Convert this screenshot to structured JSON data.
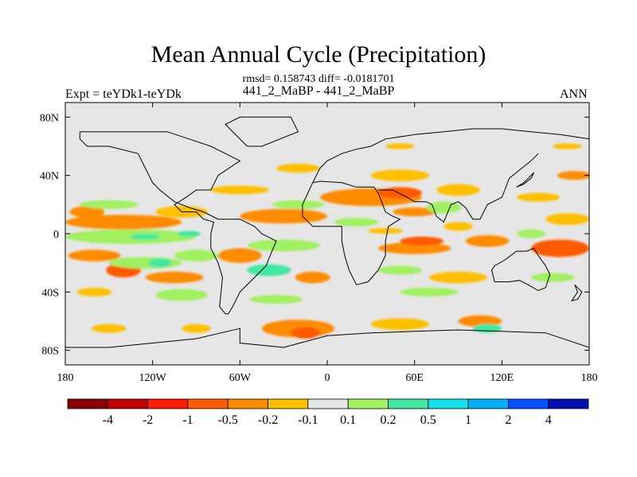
{
  "title": "Mean Annual Cycle (Precipitation)",
  "stats_line": "rmsd= 0.158743 diff= -0.0181701",
  "left_label": "Expt = teYDk1-teYDk",
  "center_label": "441_2_MaBP - 441_2_MaBP",
  "right_label": "ANN",
  "chart_data": {
    "type": "heatmap",
    "title": "Mean Annual Cycle (Precipitation)",
    "projection": "cylindrical-equidistant",
    "xlim": [
      -180,
      180
    ],
    "ylim": [
      -90,
      90
    ],
    "x_ticks": [
      {
        "value": -180,
        "label": "180"
      },
      {
        "value": -120,
        "label": "120W"
      },
      {
        "value": -60,
        "label": "60W"
      },
      {
        "value": 0,
        "label": "0"
      },
      {
        "value": 60,
        "label": "60E"
      },
      {
        "value": 120,
        "label": "120E"
      },
      {
        "value": 180,
        "label": "180"
      }
    ],
    "y_ticks": [
      {
        "value": 80,
        "label": "80N"
      },
      {
        "value": 40,
        "label": "40N"
      },
      {
        "value": 0,
        "label": "0"
      },
      {
        "value": -40,
        "label": "40S"
      },
      {
        "value": -80,
        "label": "80S"
      }
    ],
    "colorbar": {
      "colors": [
        "#8b0000",
        "#c40000",
        "#ff1a00",
        "#ff5a00",
        "#ff8c00",
        "#ffc000",
        "#e6e6e6",
        "#a0f060",
        "#40e8a0",
        "#10e0e8",
        "#00b0ff",
        "#0050ff",
        "#0010b0"
      ],
      "level_labels": [
        "-4",
        "-2",
        "-1",
        "-0.5",
        "-0.2",
        "-0.1",
        "0.1",
        "0.2",
        "0.5",
        "1",
        "2",
        "4"
      ]
    },
    "regions": [
      {
        "lon": -140,
        "lat": 8,
        "rlon": 40,
        "rlat": 5,
        "c": 4
      },
      {
        "lon": -100,
        "lat": 15,
        "rlon": 18,
        "rlat": 4,
        "c": 5
      },
      {
        "lon": -165,
        "lat": 15,
        "rlon": 12,
        "rlat": 4,
        "c": 4
      },
      {
        "lon": -135,
        "lat": -2,
        "rlon": 45,
        "rlat": 5,
        "c": 7
      },
      {
        "lon": -125,
        "lat": -2,
        "rlon": 10,
        "rlat": 2,
        "c": 8
      },
      {
        "lon": -95,
        "lat": 0,
        "rlon": 8,
        "rlat": 2,
        "c": 8
      },
      {
        "lon": -150,
        "lat": 20,
        "rlon": 20,
        "rlat": 3,
        "c": 7
      },
      {
        "lon": -160,
        "lat": -15,
        "rlon": 18,
        "rlat": 4,
        "c": 4
      },
      {
        "lon": -140,
        "lat": -25,
        "rlon": 12,
        "rlat": 5,
        "c": 3
      },
      {
        "lon": -125,
        "lat": -20,
        "rlon": 25,
        "rlat": 4,
        "c": 7
      },
      {
        "lon": -115,
        "lat": -20,
        "rlon": 8,
        "rlat": 3,
        "c": 8
      },
      {
        "lon": -90,
        "lat": -15,
        "rlon": 15,
        "rlat": 4,
        "c": 7
      },
      {
        "lon": -105,
        "lat": -30,
        "rlon": 20,
        "rlat": 4,
        "c": 4
      },
      {
        "lon": -100,
        "lat": -42,
        "rlon": 18,
        "rlat": 4,
        "c": 7
      },
      {
        "lon": -160,
        "lat": -40,
        "rlon": 12,
        "rlat": 3,
        "c": 5
      },
      {
        "lon": -30,
        "lat": 12,
        "rlon": 30,
        "rlat": 5,
        "c": 4
      },
      {
        "lon": -60,
        "lat": 30,
        "rlon": 20,
        "rlat": 3,
        "c": 5
      },
      {
        "lon": -20,
        "lat": 45,
        "rlon": 15,
        "rlat": 3,
        "c": 5
      },
      {
        "lon": -20,
        "lat": 20,
        "rlon": 18,
        "rlat": 3,
        "c": 7
      },
      {
        "lon": -30,
        "lat": -8,
        "rlon": 25,
        "rlat": 4,
        "c": 7
      },
      {
        "lon": -60,
        "lat": -15,
        "rlon": 15,
        "rlat": 5,
        "c": 4
      },
      {
        "lon": -40,
        "lat": -25,
        "rlon": 15,
        "rlat": 4,
        "c": 8
      },
      {
        "lon": -10,
        "lat": -30,
        "rlon": 12,
        "rlat": 4,
        "c": 4
      },
      {
        "lon": -35,
        "lat": -45,
        "rlon": 18,
        "rlat": 3,
        "c": 7
      },
      {
        "lon": -20,
        "lat": -65,
        "rlon": 25,
        "rlat": 6,
        "c": 4
      },
      {
        "lon": -15,
        "lat": -68,
        "rlon": 10,
        "rlat": 4,
        "c": 3
      },
      {
        "lon": -150,
        "lat": -65,
        "rlon": 12,
        "rlat": 3,
        "c": 5
      },
      {
        "lon": -90,
        "lat": -65,
        "rlon": 10,
        "rlat": 3,
        "c": 5
      },
      {
        "lon": 30,
        "lat": 25,
        "rlon": 35,
        "rlat": 6,
        "c": 4
      },
      {
        "lon": 50,
        "lat": 28,
        "rlon": 15,
        "rlat": 4,
        "c": 3
      },
      {
        "lon": 50,
        "lat": 40,
        "rlon": 20,
        "rlat": 4,
        "c": 5
      },
      {
        "lon": 60,
        "lat": 15,
        "rlon": 15,
        "rlat": 3,
        "c": 4
      },
      {
        "lon": 20,
        "lat": 8,
        "rlon": 15,
        "rlat": 3,
        "c": 7
      },
      {
        "lon": 40,
        "lat": 2,
        "rlon": 12,
        "rlat": 2,
        "c": 5
      },
      {
        "lon": 60,
        "lat": -10,
        "rlon": 25,
        "rlat": 4,
        "c": 4
      },
      {
        "lon": 65,
        "lat": -5,
        "rlon": 15,
        "rlat": 3,
        "c": 3
      },
      {
        "lon": 50,
        "lat": -25,
        "rlon": 15,
        "rlat": 3,
        "c": 7
      },
      {
        "lon": 90,
        "lat": -30,
        "rlon": 20,
        "rlat": 4,
        "c": 5
      },
      {
        "lon": 70,
        "lat": -40,
        "rlon": 20,
        "rlat": 3,
        "c": 7
      },
      {
        "lon": 80,
        "lat": 18,
        "rlon": 12,
        "rlat": 4,
        "c": 7
      },
      {
        "lon": 90,
        "lat": 30,
        "rlon": 15,
        "rlat": 4,
        "c": 5
      },
      {
        "lon": 90,
        "lat": 5,
        "rlon": 10,
        "rlat": 3,
        "c": 5
      },
      {
        "lon": 110,
        "lat": -5,
        "rlon": 15,
        "rlat": 4,
        "c": 4
      },
      {
        "lon": 50,
        "lat": -62,
        "rlon": 20,
        "rlat": 4,
        "c": 5
      },
      {
        "lon": 105,
        "lat": -60,
        "rlon": 15,
        "rlat": 4,
        "c": 4
      },
      {
        "lon": 110,
        "lat": -65,
        "rlon": 10,
        "rlat": 3,
        "c": 8
      },
      {
        "lon": 160,
        "lat": -10,
        "rlon": 20,
        "rlat": 6,
        "c": 3
      },
      {
        "lon": 165,
        "lat": 10,
        "rlon": 15,
        "rlat": 4,
        "c": 5
      },
      {
        "lon": 145,
        "lat": 25,
        "rlon": 15,
        "rlat": 3,
        "c": 5
      },
      {
        "lon": 170,
        "lat": 40,
        "rlon": 12,
        "rlat": 3,
        "c": 4
      },
      {
        "lon": 140,
        "lat": 0,
        "rlon": 10,
        "rlat": 3,
        "c": 7
      },
      {
        "lon": 155,
        "lat": -30,
        "rlon": 15,
        "rlat": 3,
        "c": 7
      },
      {
        "lon": 165,
        "lat": 60,
        "rlon": 10,
        "rlat": 2,
        "c": 5
      },
      {
        "lon": 50,
        "lat": 60,
        "rlon": 10,
        "rlat": 2,
        "c": 5
      }
    ],
    "coastlines": [
      [
        [
          -170,
          70
        ],
        [
          -150,
          70
        ],
        [
          -130,
          70
        ],
        [
          -110,
          70
        ],
        [
          -95,
          65
        ],
        [
          -80,
          60
        ],
        [
          -70,
          55
        ],
        [
          -60,
          50
        ],
        [
          -75,
          40
        ],
        [
          -80,
          30
        ],
        [
          -90,
          30
        ],
        [
          -97,
          25
        ],
        [
          -105,
          20
        ],
        [
          -100,
          15
        ],
        [
          -90,
          15
        ],
        [
          -85,
          10
        ],
        [
          -78,
          8
        ],
        [
          -80,
          0
        ],
        [
          -80,
          -10
        ],
        [
          -75,
          -20
        ],
        [
          -72,
          -30
        ],
        [
          -73,
          -40
        ],
        [
          -74,
          -50
        ],
        [
          -70,
          -55
        ],
        [
          -68,
          -55
        ],
        [
          -65,
          -50
        ],
        [
          -60,
          -40
        ],
        [
          -50,
          -30
        ],
        [
          -42,
          -22
        ],
        [
          -38,
          -12
        ],
        [
          -35,
          -5
        ],
        [
          -45,
          0
        ],
        [
          -50,
          5
        ],
        [
          -60,
          10
        ],
        [
          -75,
          10
        ],
        [
          -85,
          15
        ],
        [
          -95,
          18
        ],
        [
          -105,
          22
        ],
        [
          -115,
          30
        ],
        [
          -120,
          35
        ],
        [
          -125,
          45
        ],
        [
          -130,
          55
        ],
        [
          -150,
          60
        ],
        [
          -165,
          60
        ],
        [
          -170,
          65
        ],
        [
          -170,
          70
        ]
      ],
      [
        [
          -10,
          35
        ],
        [
          -5,
          45
        ],
        [
          0,
          50
        ],
        [
          10,
          55
        ],
        [
          20,
          58
        ],
        [
          30,
          60
        ],
        [
          40,
          65
        ],
        [
          60,
          68
        ],
        [
          80,
          70
        ],
        [
          100,
          72
        ],
        [
          120,
          72
        ],
        [
          140,
          70
        ],
        [
          160,
          68
        ],
        [
          180,
          65
        ]
      ],
      [
        [
          -10,
          35
        ],
        [
          -17,
          20
        ],
        [
          -17,
          12
        ],
        [
          -10,
          5
        ],
        [
          0,
          5
        ],
        [
          10,
          5
        ],
        [
          10,
          -5
        ],
        [
          12,
          -15
        ],
        [
          15,
          -25
        ],
        [
          20,
          -35
        ],
        [
          28,
          -33
        ],
        [
          35,
          -25
        ],
        [
          40,
          -15
        ],
        [
          40,
          -5
        ],
        [
          42,
          5
        ],
        [
          50,
          10
        ],
        [
          45,
          12
        ],
        [
          40,
          15
        ],
        [
          35,
          28
        ],
        [
          32,
          32
        ],
        [
          20,
          32
        ],
        [
          10,
          35
        ],
        [
          -5,
          36
        ],
        [
          -10,
          35
        ]
      ],
      [
        [
          35,
          30
        ],
        [
          45,
          30
        ],
        [
          55,
          25
        ],
        [
          60,
          22
        ],
        [
          68,
          22
        ],
        [
          72,
          20
        ],
        [
          75,
          12
        ],
        [
          80,
          8
        ],
        [
          85,
          20
        ],
        [
          90,
          22
        ],
        [
          95,
          18
        ],
        [
          100,
          10
        ],
        [
          105,
          10
        ],
        [
          110,
          20
        ],
        [
          120,
          25
        ],
        [
          122,
          30
        ],
        [
          125,
          38
        ],
        [
          130,
          42
        ],
        [
          140,
          50
        ],
        [
          145,
          55
        ]
      ],
      [
        [
          115,
          -22
        ],
        [
          122,
          -18
        ],
        [
          130,
          -12
        ],
        [
          137,
          -12
        ],
        [
          142,
          -10
        ],
        [
          145,
          -15
        ],
        [
          150,
          -22
        ],
        [
          153,
          -28
        ],
        [
          150,
          -37
        ],
        [
          145,
          -39
        ],
        [
          138,
          -35
        ],
        [
          132,
          -32
        ],
        [
          125,
          -33
        ],
        [
          115,
          -33
        ],
        [
          113,
          -25
        ],
        [
          115,
          -22
        ]
      ],
      [
        [
          -180,
          -78
        ],
        [
          -150,
          -78
        ],
        [
          -120,
          -75
        ],
        [
          -90,
          -72
        ],
        [
          -60,
          -65
        ],
        [
          -60,
          -75
        ],
        [
          -30,
          -78
        ],
        [
          0,
          -70
        ],
        [
          30,
          -68
        ],
        [
          60,
          -67
        ],
        [
          90,
          -66
        ],
        [
          120,
          -67
        ],
        [
          150,
          -68
        ],
        [
          180,
          -78
        ]
      ],
      [
        [
          170,
          -35
        ],
        [
          175,
          -40
        ],
        [
          172,
          -45
        ],
        [
          168,
          -46
        ],
        [
          172,
          -40
        ],
        [
          170,
          -35
        ]
      ],
      [
        [
          130,
          32
        ],
        [
          135,
          34
        ],
        [
          140,
          38
        ],
        [
          142,
          42
        ],
        [
          140,
          40
        ],
        [
          135,
          35
        ],
        [
          130,
          32
        ]
      ],
      [
        [
          -55,
          60
        ],
        [
          -45,
          60
        ],
        [
          -20,
          70
        ],
        [
          -25,
          80
        ],
        [
          -60,
          80
        ],
        [
          -70,
          75
        ],
        [
          -55,
          60
        ]
      ]
    ]
  }
}
